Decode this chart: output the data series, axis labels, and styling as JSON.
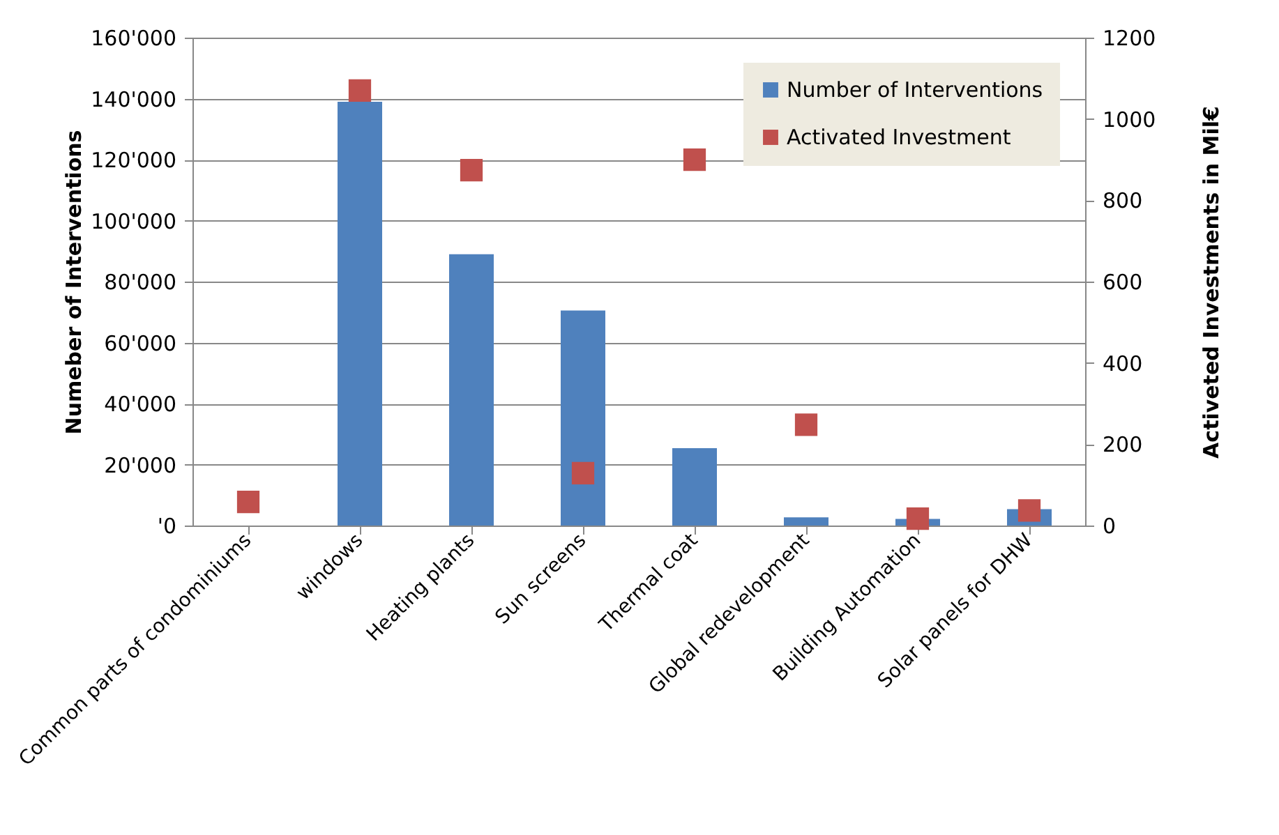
{
  "chart_data": {
    "type": "bar",
    "categories": [
      "Common parts of condominiums",
      "windows",
      "Heating plants",
      "Sun screens",
      "Thermal coat",
      "Global redevelopment",
      "Building Automation",
      "Solar panels for DHW"
    ],
    "series": [
      {
        "name": "Number of Interventions",
        "color": "#4f81bd",
        "values": [
          0,
          139000,
          89000,
          70500,
          25400,
          2700,
          2200,
          5400
        ]
      },
      {
        "name": "Activated Investment",
        "type": "scatter",
        "axis": "y2",
        "marker": "square",
        "color": "#c0504d",
        "values": [
          58,
          1070,
          874,
          129,
          900,
          248,
          17,
          37
        ]
      }
    ],
    "ylabel": "Numeber of Interventions",
    "y2label": "Activeted Investments in Mil€",
    "ylim": [
      0,
      160000
    ],
    "yticks": [
      {
        "value": 0,
        "label": "'0"
      },
      {
        "value": 20000,
        "label": "20'000"
      },
      {
        "value": 40000,
        "label": "40'000"
      },
      {
        "value": 60000,
        "label": "60'000"
      },
      {
        "value": 80000,
        "label": "80'000"
      },
      {
        "value": 100000,
        "label": "100'000"
      },
      {
        "value": 120000,
        "label": "120'000"
      },
      {
        "value": 140000,
        "label": "140'000"
      },
      {
        "value": 160000,
        "label": "160'000"
      }
    ],
    "y2lim": [
      0,
      1200
    ],
    "y2ticks": [
      0,
      200,
      400,
      600,
      800,
      1000,
      1200
    ],
    "grid": "y",
    "legend": "top right"
  }
}
